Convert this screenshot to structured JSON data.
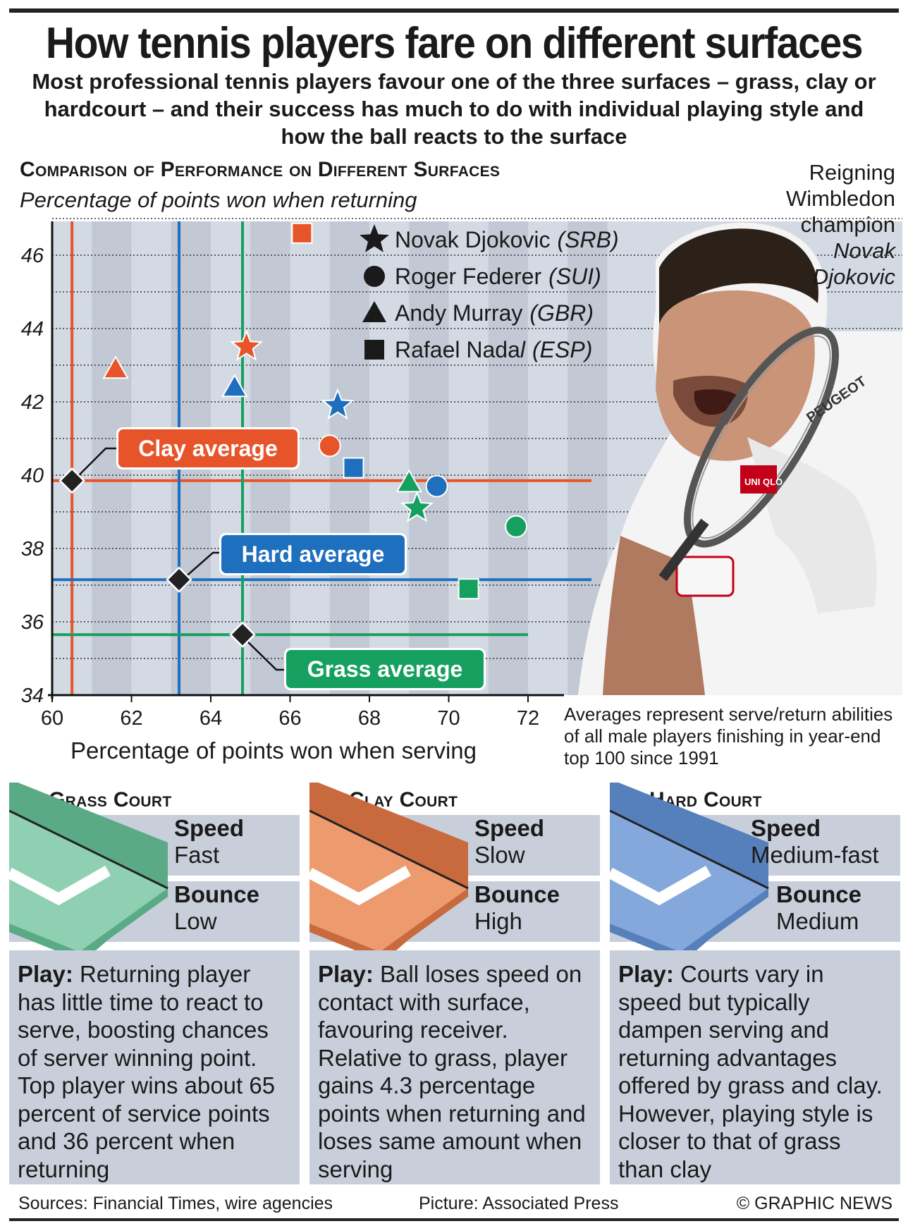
{
  "header": {
    "title": "How tennis players fare on different surfaces",
    "subtitle": "Most professional tennis players favour one of the three surfaces – grass, clay or hardcourt – and their success has much to do with individual playing style and how the ball reacts to the surface"
  },
  "chart_data": {
    "type": "scatter",
    "title": "Comparison of Performance on Different Surfaces",
    "subtitle": "Percentage of points won when returning",
    "xlabel": "Percentage of points won when serving",
    "ylabel": "Percentage of points won when returning",
    "xlim": [
      60,
      74
    ],
    "ylim": [
      34,
      47.2
    ],
    "x_ticks": [
      60,
      62,
      64,
      66,
      68,
      70,
      72
    ],
    "y_ticks": [
      34,
      36,
      38,
      40,
      42,
      44,
      46
    ],
    "grid": true,
    "legend_position": "top-right",
    "surface_colors": {
      "clay": "#e8542a",
      "hard": "#1f6fbf",
      "grass": "#16a060"
    },
    "players": [
      {
        "name": "Novak Djokovic",
        "country": "(SRB)",
        "marker": "star"
      },
      {
        "name": "Roger Federer",
        "country": "(SUI)",
        "marker": "circle"
      },
      {
        "name": "Andy Murray",
        "country": "(GBR)",
        "marker": "triangle"
      },
      {
        "name": "Rafael Nada",
        "name_italic_tail": "l",
        "country": "(ESP)",
        "marker": "square"
      }
    ],
    "points": [
      {
        "player": "Rafael Nadal",
        "surface": "clay",
        "x": 66.3,
        "y": 46.6
      },
      {
        "player": "Novak Djokovic",
        "surface": "clay",
        "x": 64.9,
        "y": 43.5
      },
      {
        "player": "Andy Murray",
        "surface": "clay",
        "x": 61.6,
        "y": 42.9
      },
      {
        "player": "Roger Federer",
        "surface": "clay",
        "x": 67.0,
        "y": 40.8
      },
      {
        "player": "Andy Murray",
        "surface": "hard",
        "x": 64.6,
        "y": 42.4
      },
      {
        "player": "Novak Djokovic",
        "surface": "hard",
        "x": 67.2,
        "y": 41.9
      },
      {
        "player": "Rafael Nadal",
        "surface": "hard",
        "x": 67.6,
        "y": 40.2
      },
      {
        "player": "Roger Federer",
        "surface": "hard",
        "x": 69.7,
        "y": 39.7
      },
      {
        "player": "Andy Murray",
        "surface": "grass",
        "x": 69.0,
        "y": 39.8
      },
      {
        "player": "Novak Djokovic",
        "surface": "grass",
        "x": 69.2,
        "y": 39.1
      },
      {
        "player": "Roger Federer",
        "surface": "grass",
        "x": 71.7,
        "y": 38.6
      },
      {
        "player": "Rafael Nadal",
        "surface": "grass",
        "x": 70.5,
        "y": 36.9
      }
    ],
    "averages": [
      {
        "surface": "clay",
        "label": "Clay average",
        "x": 60.5,
        "y": 39.85
      },
      {
        "surface": "hard",
        "label": "Hard average",
        "x": 63.2,
        "y": 37.15
      },
      {
        "surface": "grass",
        "label": "Grass average",
        "x": 64.8,
        "y": 35.65
      }
    ]
  },
  "photo": {
    "caption": [
      "Reigning",
      "Wimbledon",
      "champion"
    ],
    "caption_name": [
      "Novak",
      "Djokovic"
    ],
    "icon": "player-photo-icon",
    "shirt_text": "PEUGEOT",
    "sleeve_text": "UNI QLO"
  },
  "note": "Averages represent serve/return abilities of all male players finishing in year-end top 100 since 1991",
  "courts": [
    {
      "key": "grass",
      "title": "Grass Court",
      "color": "#8fd0b2",
      "dark": "#5aaa86",
      "speed_label": "Speed",
      "speed": "Fast",
      "bounce_label": "Bounce",
      "bounce": "Low",
      "play_label": "Play:",
      "play": "Returning player has little time to react to serve, boosting chances of server winning point. Top player wins about 65 percent of service points and 36 percent when returning"
    },
    {
      "key": "clay",
      "title": "Clay Court",
      "color": "#ed9a6e",
      "dark": "#c86a3e",
      "speed_label": "Speed",
      "speed": "Slow",
      "bounce_label": "Bounce",
      "bounce": "High",
      "play_label": "Play:",
      "play": "Ball loses speed on contact with surface, favouring receiver. Relative to grass, player gains 4.3 percentage points when returning and loses same amount when serving"
    },
    {
      "key": "hard",
      "title": "Hard Court",
      "color": "#85a8dc",
      "dark": "#5680bb",
      "speed_label": "Speed",
      "speed": "Medium-fast",
      "bounce_label": "Bounce",
      "bounce": "Medium",
      "play_label": "Play:",
      "play": "Courts vary in speed but typically dampen serving and returning advantages offered by grass and clay. However, playing style is closer to that of grass than clay"
    }
  ],
  "footer": {
    "sources": "Sources: Financial Times, wire agencies",
    "picture": "Picture: Associated Press",
    "credit": "© GRAPHIC NEWS"
  }
}
